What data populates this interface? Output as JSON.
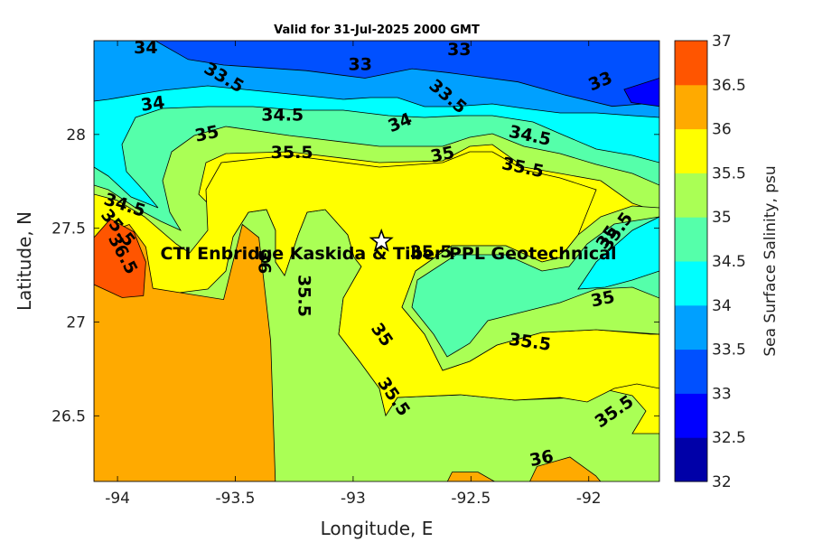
{
  "chart_data": {
    "type": "heatmap",
    "subtype": "filled-contour",
    "title": "Valid for 31-Jul-2025 2000 GMT",
    "xlabel": "Longitude, E",
    "ylabel": "Latitude, N",
    "xlim": [
      -94.1,
      -91.7
    ],
    "ylim": [
      26.15,
      28.5
    ],
    "xticks": [
      "-94",
      "-93.5",
      "-93",
      "-92.5",
      "-92"
    ],
    "xtick_values": [
      -94,
      -93.5,
      -93,
      -92.5,
      -92
    ],
    "yticks": [
      "26.5",
      "27",
      "27.5",
      "28"
    ],
    "ytick_values": [
      26.5,
      27,
      27.5,
      28
    ],
    "colorbar": {
      "label": "Sea Surface Salinity, psu",
      "levels": [
        "32",
        "32.5",
        "33",
        "33.5",
        "34",
        "34.5",
        "35",
        "35.5",
        "36",
        "36.5",
        "37"
      ],
      "colors": [
        "#0000a8",
        "#0000ff",
        "#0050ff",
        "#00a0ff",
        "#00ffff",
        "#55ffaa",
        "#aaff55",
        "#ffff00",
        "#ffaa00",
        "#ff5500"
      ]
    },
    "annotation": "CTI Enbridge Kaskida & Tiber PPL Geotechnical",
    "marker": {
      "symbol": "star",
      "lon": -92.88,
      "lat": 27.43
    },
    "regions": [
      {
        "level": 36.0,
        "points": [
          [
            -94.1,
            26.15
          ],
          [
            -94.1,
            27.45
          ],
          [
            -93.95,
            27.52
          ],
          [
            -93.88,
            27.4
          ],
          [
            -93.85,
            27.18
          ],
          [
            -93.55,
            27.12
          ],
          [
            -93.47,
            27.52
          ],
          [
            -93.4,
            27.45
          ],
          [
            -93.35,
            26.9
          ],
          [
            -93.33,
            26.15
          ]
        ]
      },
      {
        "level": 36.5,
        "points": [
          [
            -94.1,
            27.45
          ],
          [
            -94.03,
            27.55
          ],
          [
            -93.93,
            27.48
          ],
          [
            -93.88,
            27.32
          ],
          [
            -93.89,
            27.14
          ],
          [
            -93.98,
            27.13
          ],
          [
            -94.1,
            27.2
          ]
        ]
      },
      {
        "level": 36.0,
        "points": [
          [
            -92.6,
            26.15
          ],
          [
            -92.58,
            26.2
          ],
          [
            -92.47,
            26.2
          ],
          [
            -92.4,
            26.15
          ]
        ]
      },
      {
        "level": 36.0,
        "points": [
          [
            -92.25,
            26.15
          ],
          [
            -92.22,
            26.23
          ],
          [
            -92.08,
            26.28
          ],
          [
            -91.97,
            26.18
          ],
          [
            -91.95,
            26.15
          ]
        ]
      },
      {
        "level": 33.0,
        "points": [
          [
            -93.84,
            28.5
          ],
          [
            -93.7,
            28.4
          ],
          [
            -93.55,
            28.37
          ],
          [
            -93.2,
            28.34
          ],
          [
            -92.95,
            28.3
          ],
          [
            -92.75,
            28.35
          ],
          [
            -92.6,
            28.33
          ],
          [
            -92.3,
            28.28
          ],
          [
            -92.1,
            28.21
          ],
          [
            -91.9,
            28.15
          ],
          [
            -91.7,
            28.17
          ],
          [
            -91.7,
            28.5
          ]
        ]
      },
      {
        "level": 32.5,
        "points": [
          [
            -91.7,
            28.3
          ],
          [
            -91.85,
            28.24
          ],
          [
            -91.82,
            28.17
          ],
          [
            -91.7,
            28.15
          ]
        ]
      }
    ],
    "contour_labels": [
      {
        "text": "34",
        "lon": -93.88,
        "lat": 28.46,
        "angle": 0
      },
      {
        "text": "33",
        "lon": -92.97,
        "lat": 28.37,
        "angle": 0
      },
      {
        "text": "33",
        "lon": -92.55,
        "lat": 28.45,
        "angle": 0
      },
      {
        "text": "33.5",
        "lon": -93.55,
        "lat": 28.3,
        "angle": 30
      },
      {
        "text": "33.5",
        "lon": -92.6,
        "lat": 28.2,
        "angle": 40
      },
      {
        "text": "33",
        "lon": -91.95,
        "lat": 28.28,
        "angle": -22
      },
      {
        "text": "34",
        "lon": -93.85,
        "lat": 28.16,
        "angle": -8
      },
      {
        "text": "34.5",
        "lon": -93.3,
        "lat": 28.1,
        "angle": 0
      },
      {
        "text": "34",
        "lon": -92.8,
        "lat": 28.06,
        "angle": -22
      },
      {
        "text": "35",
        "lon": -93.62,
        "lat": 28.0,
        "angle": -12
      },
      {
        "text": "34.5",
        "lon": -92.25,
        "lat": 27.99,
        "angle": 12
      },
      {
        "text": "35.5",
        "lon": -93.26,
        "lat": 27.9,
        "angle": 0
      },
      {
        "text": "35",
        "lon": -92.62,
        "lat": 27.89,
        "angle": -12
      },
      {
        "text": "35.5",
        "lon": -92.28,
        "lat": 27.82,
        "angle": 12
      },
      {
        "text": "34.5",
        "lon": -93.97,
        "lat": 27.62,
        "angle": 18
      },
      {
        "text": "35.5",
        "lon": -94.0,
        "lat": 27.5,
        "angle": 50
      },
      {
        "text": "36.5",
        "lon": -93.98,
        "lat": 27.36,
        "angle": 62
      },
      {
        "text": "35",
        "lon": -91.92,
        "lat": 27.45,
        "angle": -55
      },
      {
        "text": "35.5",
        "lon": -91.88,
        "lat": 27.48,
        "angle": -55
      },
      {
        "text": "36",
        "lon": -93.38,
        "lat": 27.32,
        "angle": 90
      },
      {
        "text": "35.5",
        "lon": -92.67,
        "lat": 27.37,
        "angle": 0
      },
      {
        "text": "35.5",
        "lon": -93.21,
        "lat": 27.14,
        "angle": 90
      },
      {
        "text": "35",
        "lon": -91.94,
        "lat": 27.12,
        "angle": -12
      },
      {
        "text": "35",
        "lon": -92.88,
        "lat": 26.93,
        "angle": 55
      },
      {
        "text": "35.5",
        "lon": -92.25,
        "lat": 26.89,
        "angle": 8
      },
      {
        "text": "35.5",
        "lon": -92.83,
        "lat": 26.6,
        "angle": 55
      },
      {
        "text": "35.5",
        "lon": -91.89,
        "lat": 26.52,
        "angle": -35
      },
      {
        "text": "36",
        "lon": -92.2,
        "lat": 26.27,
        "angle": -12
      }
    ]
  }
}
